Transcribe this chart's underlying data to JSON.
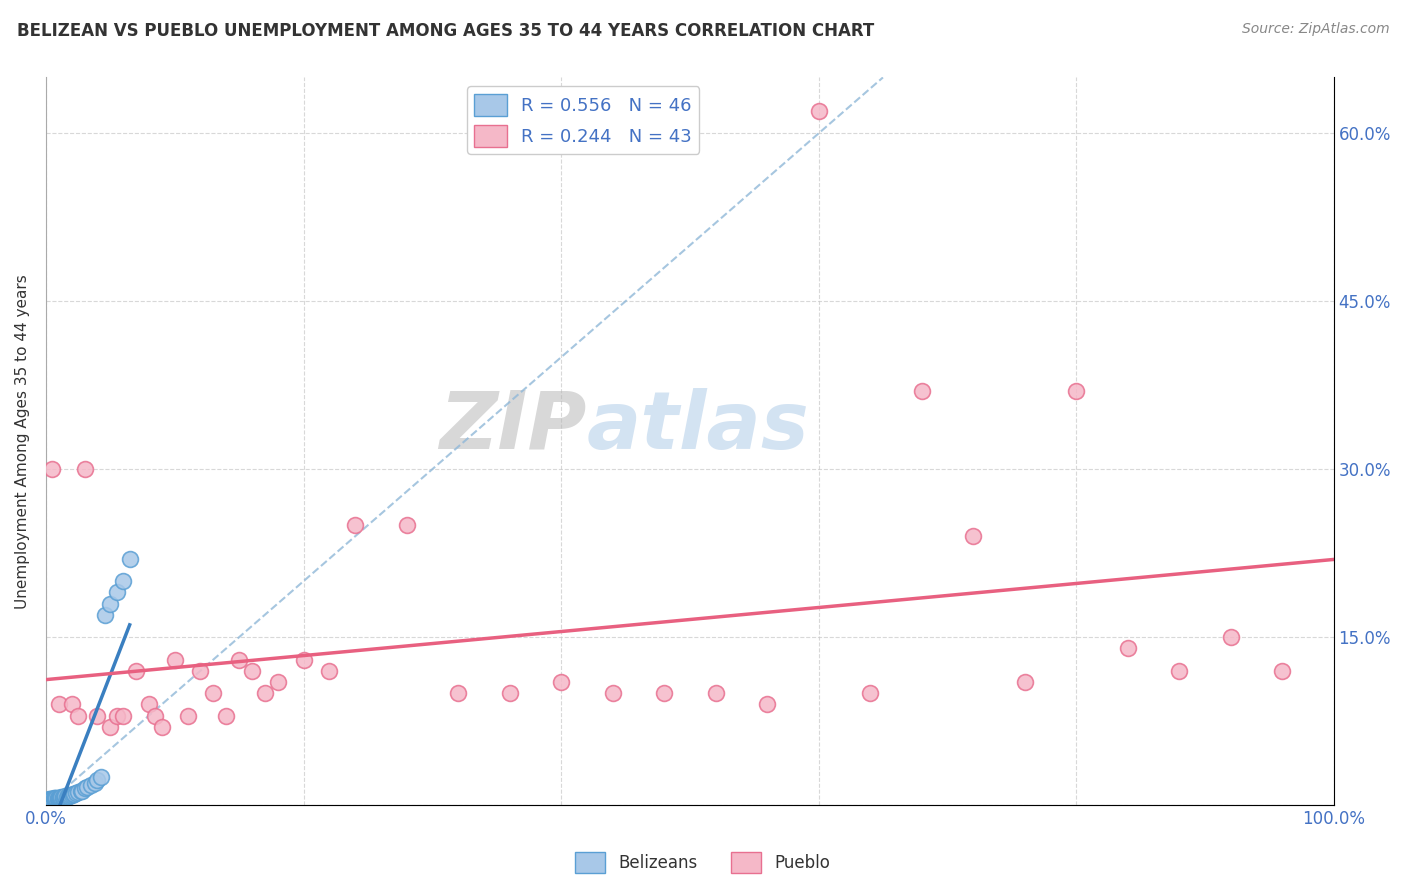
{
  "title": "BELIZEAN VS PUEBLO UNEMPLOYMENT AMONG AGES 35 TO 44 YEARS CORRELATION CHART",
  "source": "Source: ZipAtlas.com",
  "ylabel": "Unemployment Among Ages 35 to 44 years",
  "xlim": [
    0.0,
    1.0
  ],
  "ylim": [
    0.0,
    0.65
  ],
  "xticks": [
    0.0,
    0.2,
    0.4,
    0.6,
    0.8,
    1.0
  ],
  "xticklabels": [
    "0.0%",
    "",
    "",
    "",
    "",
    "100.0%"
  ],
  "yticks": [
    0.0,
    0.15,
    0.3,
    0.45,
    0.6
  ],
  "yticklabels": [
    "",
    "15.0%",
    "30.0%",
    "45.0%",
    "60.0%"
  ],
  "legend_r1": "R = 0.556",
  "legend_n1": "N = 46",
  "legend_r2": "R = 0.244",
  "legend_n2": "N = 43",
  "color_belizean": "#a8c8e8",
  "color_belizean_edge": "#5a9fd4",
  "color_pueblo": "#f5b8c8",
  "color_pueblo_edge": "#e87090",
  "color_belizean_line": "#3a7fc0",
  "color_pueblo_line": "#e86080",
  "color_diag": "#90b8d8",
  "watermark_zip": "ZIP",
  "watermark_atlas": "atlas",
  "belizean_x": [
    0.002,
    0.003,
    0.004,
    0.005,
    0.005,
    0.006,
    0.006,
    0.007,
    0.007,
    0.008,
    0.008,
    0.009,
    0.009,
    0.01,
    0.01,
    0.011,
    0.011,
    0.012,
    0.012,
    0.013,
    0.013,
    0.014,
    0.015,
    0.015,
    0.016,
    0.017,
    0.018,
    0.019,
    0.02,
    0.021,
    0.022,
    0.023,
    0.025,
    0.027,
    0.028,
    0.03,
    0.032,
    0.035,
    0.038,
    0.04,
    0.043,
    0.046,
    0.05,
    0.055,
    0.06,
    0.065
  ],
  "belizean_y": [
    0.005,
    0.005,
    0.005,
    0.005,
    0.005,
    0.005,
    0.006,
    0.005,
    0.006,
    0.005,
    0.006,
    0.005,
    0.006,
    0.005,
    0.006,
    0.006,
    0.006,
    0.006,
    0.007,
    0.006,
    0.007,
    0.006,
    0.007,
    0.008,
    0.007,
    0.008,
    0.008,
    0.009,
    0.009,
    0.01,
    0.01,
    0.011,
    0.012,
    0.013,
    0.013,
    0.015,
    0.016,
    0.018,
    0.02,
    0.022,
    0.025,
    0.17,
    0.18,
    0.19,
    0.2,
    0.22
  ],
  "pueblo_x": [
    0.005,
    0.01,
    0.02,
    0.025,
    0.03,
    0.04,
    0.05,
    0.055,
    0.06,
    0.07,
    0.08,
    0.085,
    0.09,
    0.1,
    0.11,
    0.12,
    0.13,
    0.14,
    0.15,
    0.16,
    0.17,
    0.18,
    0.2,
    0.22,
    0.24,
    0.28,
    0.32,
    0.36,
    0.4,
    0.44,
    0.48,
    0.52,
    0.56,
    0.6,
    0.64,
    0.68,
    0.72,
    0.76,
    0.8,
    0.84,
    0.88,
    0.92,
    0.96
  ],
  "pueblo_y": [
    0.3,
    0.09,
    0.09,
    0.08,
    0.3,
    0.08,
    0.07,
    0.08,
    0.08,
    0.12,
    0.09,
    0.08,
    0.07,
    0.13,
    0.08,
    0.12,
    0.1,
    0.08,
    0.13,
    0.12,
    0.1,
    0.11,
    0.13,
    0.12,
    0.25,
    0.25,
    0.1,
    0.1,
    0.11,
    0.1,
    0.1,
    0.1,
    0.09,
    0.62,
    0.1,
    0.37,
    0.24,
    0.11,
    0.37,
    0.14,
    0.12,
    0.15,
    0.12
  ]
}
